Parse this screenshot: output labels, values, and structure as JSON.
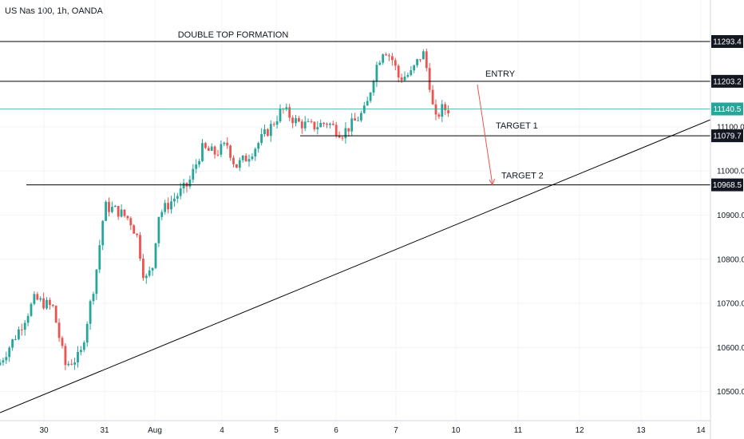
{
  "header": {
    "title": "US Nas 100, 1h, OANDA"
  },
  "colors": {
    "up": "#26a69a",
    "down": "#ef5350",
    "grid": "#f0f3fa",
    "last": "#26a69a",
    "line": "#000000",
    "arrow": "#ef5350"
  },
  "chart_data": {
    "type": "candlestick",
    "title": "US Nas 100, 1h, OANDA",
    "ylim": [
      10440,
      11340
    ],
    "xlim": [
      29.25,
      14.2
    ],
    "grid": true,
    "y_ticks": [
      "10500.0",
      "10600.0",
      "10700.0",
      "10800.0",
      "10900.0",
      "11000.0",
      "11100.0"
    ],
    "x_ticks": [
      {
        "label": "30",
        "x": 30
      },
      {
        "label": "31",
        "x": 31
      },
      {
        "label": "Aug",
        "x": 32
      },
      {
        "label": "4",
        "x": 33
      },
      {
        "label": "5",
        "x": 34
      },
      {
        "label": "6",
        "x": 35
      },
      {
        "label": "7",
        "x": 36
      },
      {
        "label": "10",
        "x": 37
      },
      {
        "label": "11",
        "x": 38
      },
      {
        "label": "12",
        "x": 39
      },
      {
        "label": "13",
        "x": 40
      },
      {
        "label": "14",
        "x": 41
      }
    ],
    "levels": [
      {
        "label": "11293.4",
        "value": 11293.4,
        "text": "DOUBLE TOP FORMATION",
        "x_start": 29.25,
        "x_end": 41.2
      },
      {
        "label": "11203.2",
        "value": 11203.2,
        "text": "ENTRY",
        "x_start": 29.25,
        "x_end": 41.2
      },
      {
        "label": "11079.7",
        "value": 11079.7,
        "text": "TARGET 1",
        "x_start": 34.4,
        "x_end": 41.2
      },
      {
        "label": "10968.5",
        "value": 10968.5,
        "text": "TARGET 2",
        "x_start": 29.65,
        "x_end": 41.2
      }
    ],
    "last_price": {
      "label": "11140.5",
      "value": 11140.5
    },
    "trendline": {
      "x1": 29.25,
      "y1": 10480,
      "x2": 41.2,
      "y2": 11120
    },
    "arrow": {
      "x1": 36.65,
      "y1": 11195,
      "x2": 36.85,
      "y2": 10970
    },
    "key_points": [
      {
        "x": 29.25,
        "y": 10560
      },
      {
        "x": 29.55,
        "y": 10630
      },
      {
        "x": 29.85,
        "y": 10710
      },
      {
        "x": 30.15,
        "y": 10690
      },
      {
        "x": 30.35,
        "y": 10560
      },
      {
        "x": 30.6,
        "y": 10580
      },
      {
        "x": 30.85,
        "y": 10760
      },
      {
        "x": 31.0,
        "y": 10920
      },
      {
        "x": 31.25,
        "y": 10910
      },
      {
        "x": 31.5,
        "y": 10890
      },
      {
        "x": 31.65,
        "y": 10850
      },
      {
        "x": 31.8,
        "y": 10750
      },
      {
        "x": 31.95,
        "y": 10780
      },
      {
        "x": 32.05,
        "y": 10900
      },
      {
        "x": 32.3,
        "y": 10940
      },
      {
        "x": 32.5,
        "y": 10970
      },
      {
        "x": 32.7,
        "y": 11050
      },
      {
        "x": 32.9,
        "y": 11040
      },
      {
        "x": 33.1,
        "y": 11060
      },
      {
        "x": 33.25,
        "y": 11010
      },
      {
        "x": 33.45,
        "y": 11030
      },
      {
        "x": 33.65,
        "y": 11060
      },
      {
        "x": 33.9,
        "y": 11100
      },
      {
        "x": 34.1,
        "y": 11140
      },
      {
        "x": 34.35,
        "y": 11110
      },
      {
        "x": 34.6,
        "y": 11100
      },
      {
        "x": 34.85,
        "y": 11110
      },
      {
        "x": 35.1,
        "y": 11085
      },
      {
        "x": 35.3,
        "y": 11110
      },
      {
        "x": 35.5,
        "y": 11140
      },
      {
        "x": 35.65,
        "y": 11230
      },
      {
        "x": 35.8,
        "y": 11280
      },
      {
        "x": 35.95,
        "y": 11250
      },
      {
        "x": 36.05,
        "y": 11210
      },
      {
        "x": 36.25,
        "y": 11220
      },
      {
        "x": 36.45,
        "y": 11270
      },
      {
        "x": 36.55,
        "y": 11210
      },
      {
        "x": 36.65,
        "y": 11110
      },
      {
        "x": 36.75,
        "y": 11140
      }
    ]
  }
}
